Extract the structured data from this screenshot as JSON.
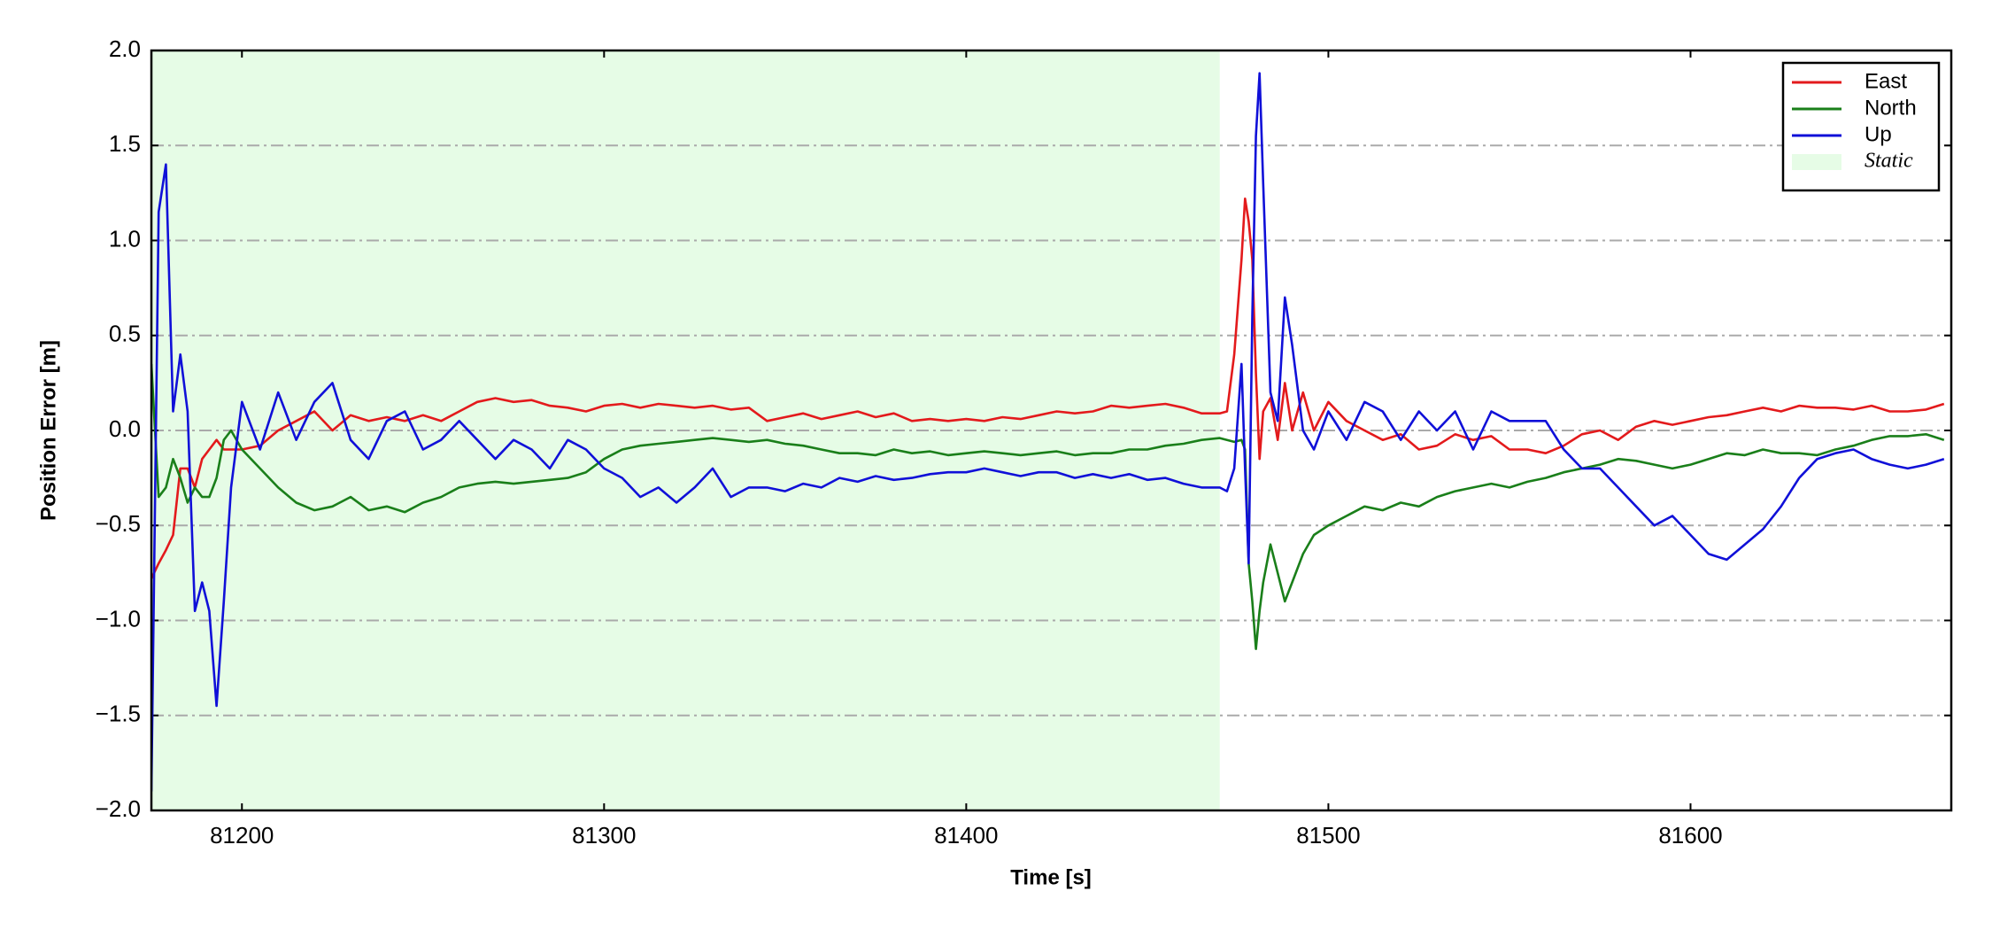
{
  "chart_data": {
    "type": "line",
    "xlabel": "Time [s]",
    "ylabel": "Position Error [m]",
    "x": [
      81175,
      81177,
      81179,
      81181,
      81183,
      81185,
      81187,
      81189,
      81191,
      81193,
      81195,
      81197,
      81200,
      81205,
      81210,
      81215,
      81220,
      81225,
      81230,
      81235,
      81240,
      81245,
      81250,
      81255,
      81260,
      81265,
      81270,
      81275,
      81280,
      81285,
      81290,
      81295,
      81300,
      81305,
      81310,
      81315,
      81320,
      81325,
      81330,
      81335,
      81340,
      81345,
      81350,
      81355,
      81360,
      81365,
      81370,
      81375,
      81380,
      81385,
      81390,
      81395,
      81400,
      81405,
      81410,
      81415,
      81420,
      81425,
      81430,
      81435,
      81440,
      81445,
      81450,
      81455,
      81460,
      81465,
      81470,
      81472,
      81474,
      81476,
      81477,
      81478,
      81479,
      81480,
      81481,
      81482,
      81484,
      81486,
      81488,
      81490,
      81493,
      81496,
      81500,
      81505,
      81510,
      81515,
      81520,
      81525,
      81530,
      81535,
      81540,
      81545,
      81550,
      81555,
      81560,
      81565,
      81570,
      81575,
      81580,
      81585,
      81590,
      81595,
      81600,
      81605,
      81610,
      81615,
      81620,
      81625,
      81630,
      81635,
      81640,
      81645,
      81650,
      81655,
      81660,
      81665,
      81670
    ],
    "series": [
      {
        "name": "East",
        "color": "#e31a1c",
        "values": [
          -0.78,
          -0.7,
          -0.63,
          -0.55,
          -0.2,
          -0.2,
          -0.3,
          -0.15,
          -0.1,
          -0.05,
          -0.1,
          -0.1,
          -0.1,
          -0.08,
          0.0,
          0.05,
          0.1,
          0.0,
          0.08,
          0.05,
          0.07,
          0.05,
          0.08,
          0.05,
          0.1,
          0.15,
          0.17,
          0.15,
          0.16,
          0.13,
          0.12,
          0.1,
          0.13,
          0.14,
          0.12,
          0.14,
          0.13,
          0.12,
          0.13,
          0.11,
          0.12,
          0.05,
          0.07,
          0.09,
          0.06,
          0.08,
          0.1,
          0.07,
          0.09,
          0.05,
          0.06,
          0.05,
          0.06,
          0.05,
          0.07,
          0.06,
          0.08,
          0.1,
          0.09,
          0.1,
          0.13,
          0.12,
          0.13,
          0.14,
          0.12,
          0.09,
          0.09,
          0.1,
          0.4,
          0.9,
          1.22,
          1.1,
          0.9,
          0.3,
          -0.15,
          0.1,
          0.17,
          -0.05,
          0.25,
          0.0,
          0.2,
          0.0,
          0.15,
          0.05,
          0.0,
          -0.05,
          -0.02,
          -0.1,
          -0.08,
          -0.02,
          -0.05,
          -0.03,
          -0.1,
          -0.1,
          -0.12,
          -0.08,
          -0.02,
          0.0,
          -0.05,
          0.02,
          0.05,
          0.03,
          0.05,
          0.07,
          0.08,
          0.1,
          0.12,
          0.1,
          0.13,
          0.12,
          0.12,
          0.11,
          0.13,
          0.1,
          0.1,
          0.11,
          0.14
        ]
      },
      {
        "name": "North",
        "color": "#1a7f1a",
        "values": [
          0.35,
          -0.35,
          -0.3,
          -0.15,
          -0.25,
          -0.38,
          -0.3,
          -0.35,
          -0.35,
          -0.25,
          -0.05,
          0.0,
          -0.1,
          -0.2,
          -0.3,
          -0.38,
          -0.42,
          -0.4,
          -0.35,
          -0.42,
          -0.4,
          -0.43,
          -0.38,
          -0.35,
          -0.3,
          -0.28,
          -0.27,
          -0.28,
          -0.27,
          -0.26,
          -0.25,
          -0.22,
          -0.15,
          -0.1,
          -0.08,
          -0.07,
          -0.06,
          -0.05,
          -0.04,
          -0.05,
          -0.06,
          -0.05,
          -0.07,
          -0.08,
          -0.1,
          -0.12,
          -0.12,
          -0.13,
          -0.1,
          -0.12,
          -0.11,
          -0.13,
          -0.12,
          -0.11,
          -0.12,
          -0.13,
          -0.12,
          -0.11,
          -0.13,
          -0.12,
          -0.12,
          -0.1,
          -0.1,
          -0.08,
          -0.07,
          -0.05,
          -0.04,
          -0.05,
          -0.06,
          -0.05,
          -0.1,
          -0.7,
          -0.9,
          -1.15,
          -0.95,
          -0.8,
          -0.6,
          -0.75,
          -0.9,
          -0.8,
          -0.65,
          -0.55,
          -0.5,
          -0.45,
          -0.4,
          -0.42,
          -0.38,
          -0.4,
          -0.35,
          -0.32,
          -0.3,
          -0.28,
          -0.3,
          -0.27,
          -0.25,
          -0.22,
          -0.2,
          -0.18,
          -0.15,
          -0.16,
          -0.18,
          -0.2,
          -0.18,
          -0.15,
          -0.12,
          -0.13,
          -0.1,
          -0.12,
          -0.12,
          -0.13,
          -0.1,
          -0.08,
          -0.05,
          -0.03,
          -0.03,
          -0.02,
          -0.05
        ]
      },
      {
        "name": "Up",
        "color": "#1010d8",
        "values": [
          -1.9,
          1.15,
          1.4,
          0.1,
          0.4,
          0.1,
          -0.95,
          -0.8,
          -0.95,
          -1.45,
          -0.9,
          -0.3,
          0.15,
          -0.1,
          0.2,
          -0.05,
          0.15,
          0.25,
          -0.05,
          -0.15,
          0.05,
          0.1,
          -0.1,
          -0.05,
          0.05,
          -0.05,
          -0.15,
          -0.05,
          -0.1,
          -0.2,
          -0.05,
          -0.1,
          -0.2,
          -0.25,
          -0.35,
          -0.3,
          -0.38,
          -0.3,
          -0.2,
          -0.35,
          -0.3,
          -0.3,
          -0.32,
          -0.28,
          -0.3,
          -0.25,
          -0.27,
          -0.24,
          -0.26,
          -0.25,
          -0.23,
          -0.22,
          -0.22,
          -0.2,
          -0.22,
          -0.24,
          -0.22,
          -0.22,
          -0.25,
          -0.23,
          -0.25,
          -0.23,
          -0.26,
          -0.25,
          -0.28,
          -0.3,
          -0.3,
          -0.32,
          -0.2,
          0.35,
          -0.2,
          -0.7,
          0.6,
          1.55,
          1.88,
          1.3,
          0.2,
          0.05,
          0.7,
          0.45,
          0.0,
          -0.1,
          0.1,
          -0.05,
          0.15,
          0.1,
          -0.05,
          0.1,
          0.0,
          0.1,
          -0.1,
          0.1,
          0.05,
          0.05,
          0.05,
          -0.1,
          -0.2,
          -0.2,
          -0.3,
          -0.4,
          -0.5,
          -0.45,
          -0.55,
          -0.65,
          -0.68,
          -0.6,
          -0.52,
          -0.4,
          -0.25,
          -0.15,
          -0.12,
          -0.1,
          -0.15,
          -0.18,
          -0.2,
          -0.18,
          -0.15
        ]
      }
    ],
    "shaded_region": {
      "name": "Static",
      "xlim": [
        81175,
        81470
      ],
      "color": "#e6fce6"
    },
    "xlim": [
      81175,
      81672
    ],
    "xticks": [
      81200,
      81300,
      81400,
      81500,
      81600
    ],
    "ylim": [
      -2,
      2
    ],
    "yticks": [
      {
        "value": -2,
        "label": "−2.0"
      },
      {
        "value": -1.5,
        "label": "−1.5"
      },
      {
        "value": -1,
        "label": "−1.0"
      },
      {
        "value": -0.5,
        "label": "−0.5"
      },
      {
        "value": 0,
        "label": "0.0"
      },
      {
        "value": 0.5,
        "label": "0.5"
      },
      {
        "value": 1,
        "label": "1.0"
      },
      {
        "value": 1.5,
        "label": "1.5"
      },
      {
        "value": 2,
        "label": "2.0"
      }
    ],
    "grid": true,
    "legend": "upper right"
  }
}
